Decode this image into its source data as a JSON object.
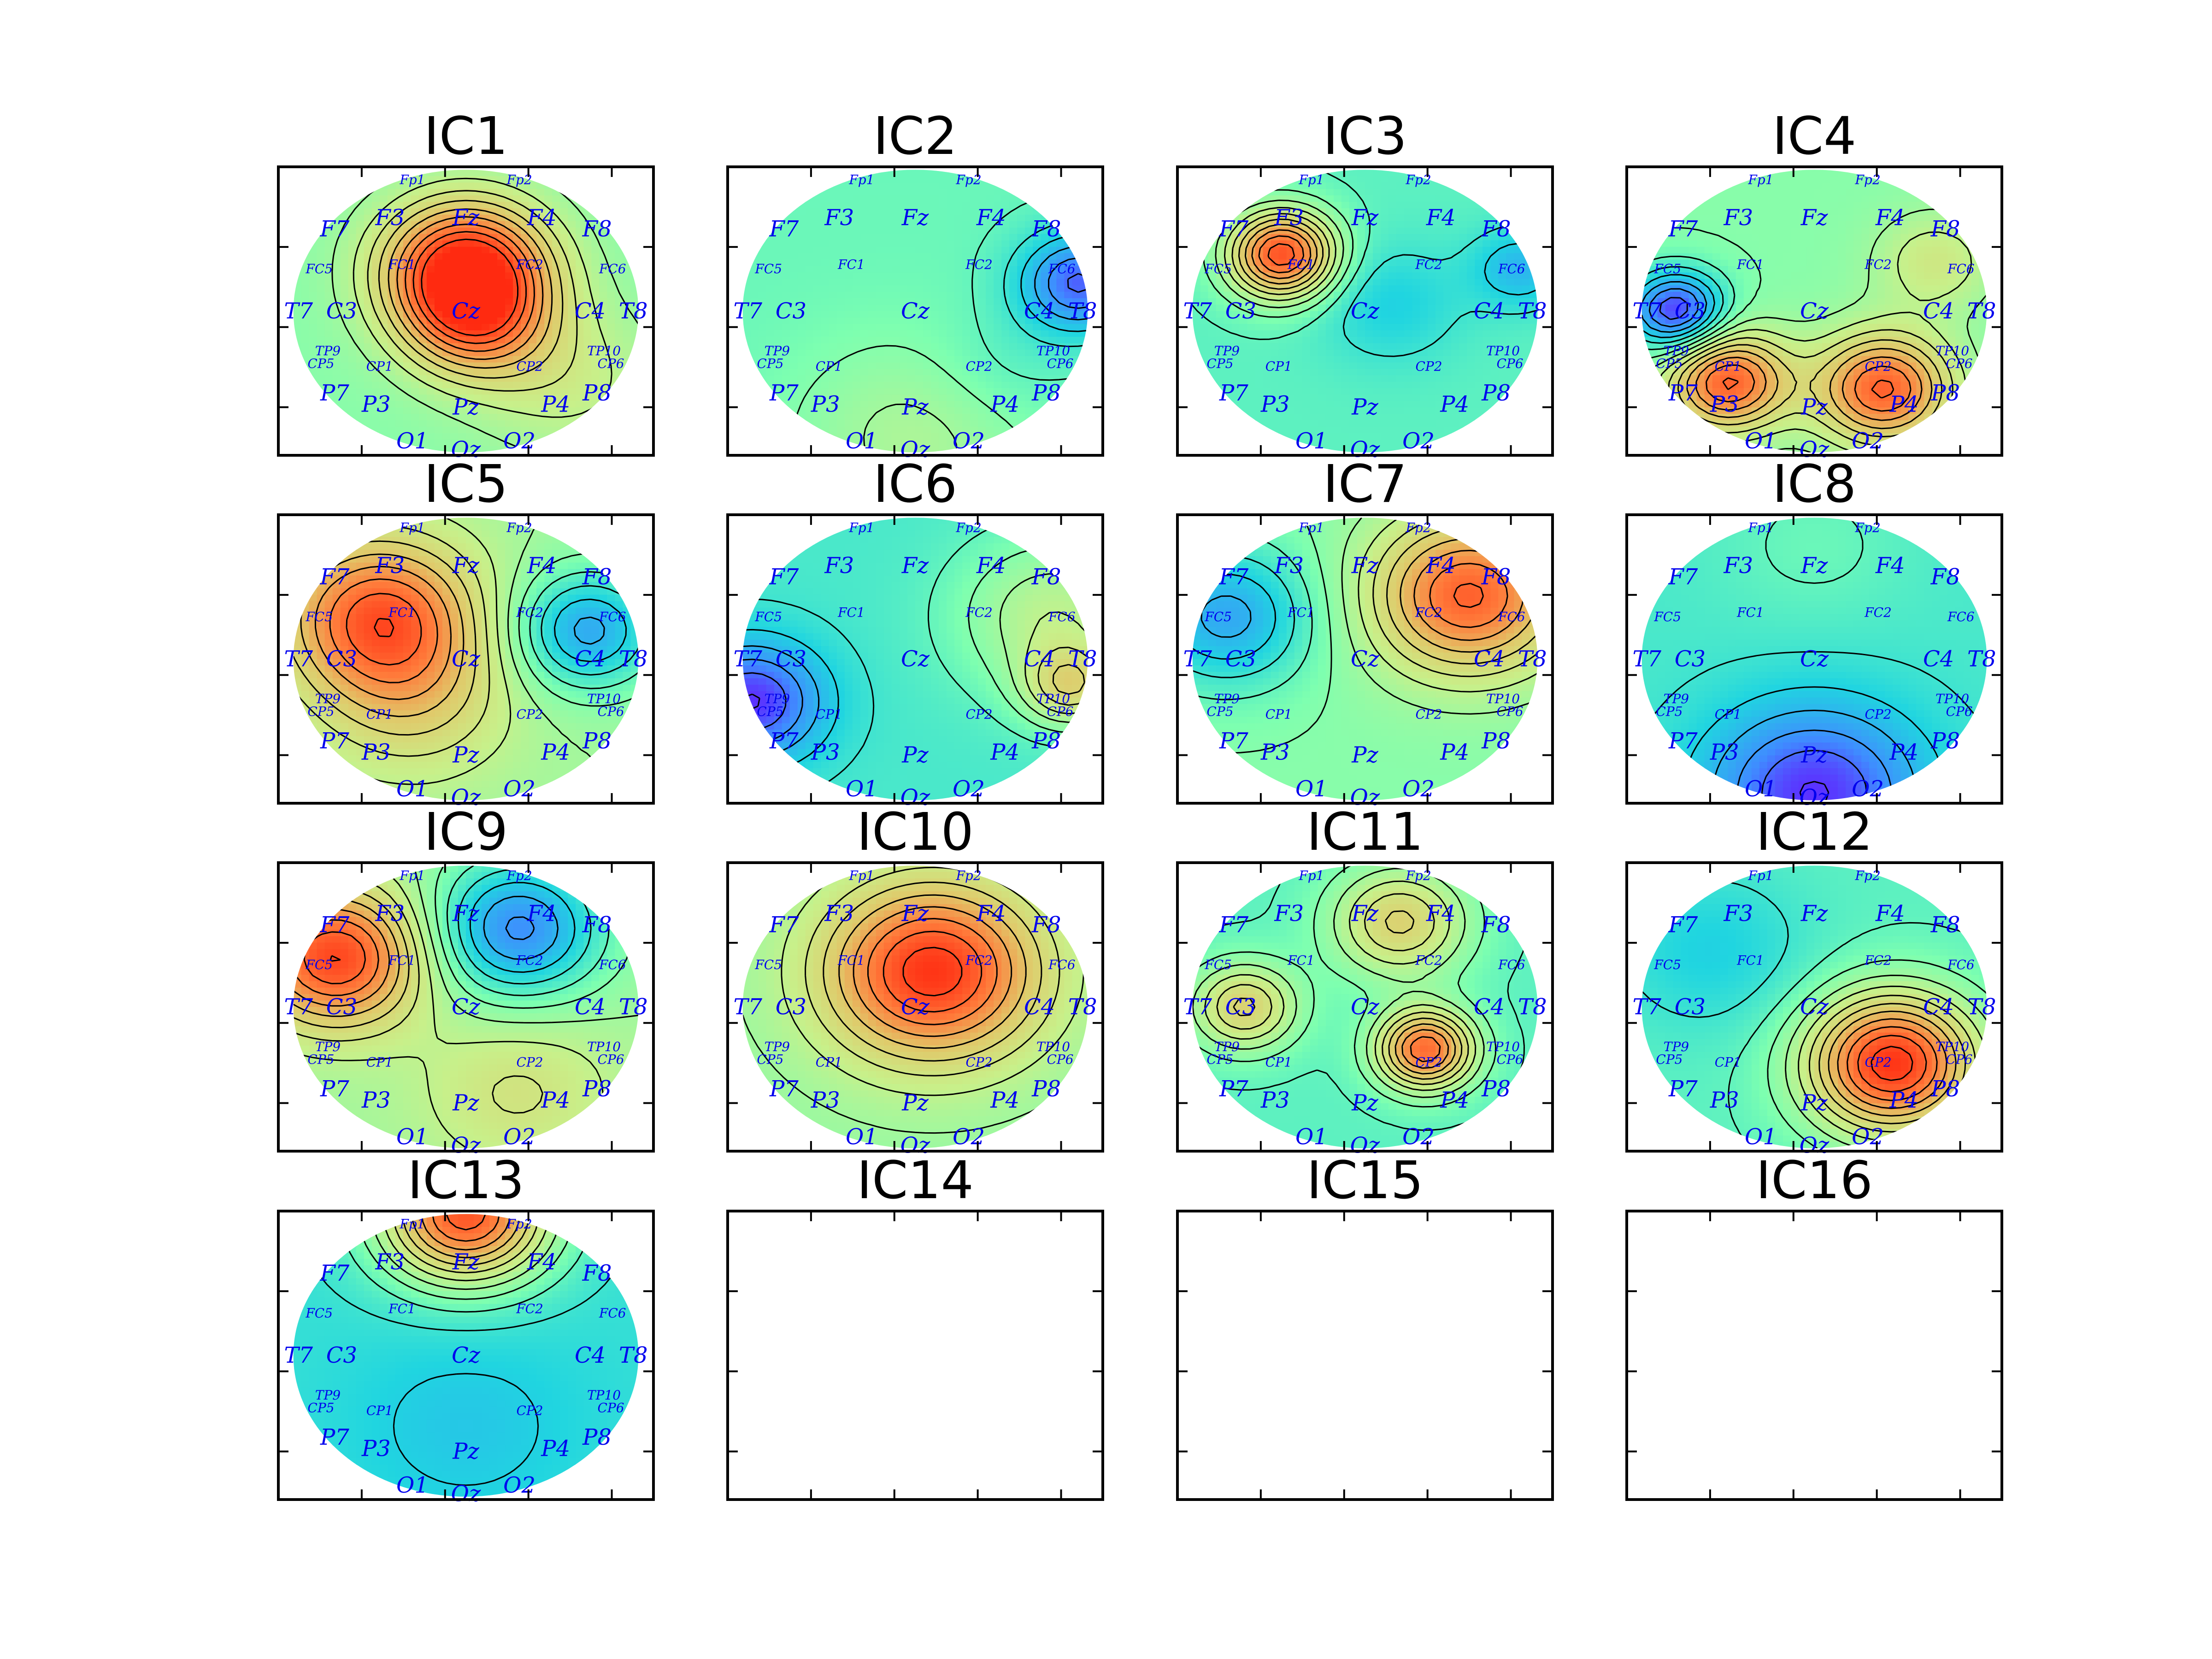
{
  "figure": {
    "domain": "Chart",
    "layout": "4x4 grid of scalp topography subplots"
  },
  "chart_data": {
    "type": "heatmap",
    "colormap": [
      "#6a00ff",
      "#3f8cff",
      "#20d5e0",
      "#7dffb0",
      "#c8f08a",
      "#e0c96a",
      "#ff7a3a",
      "#ff2a10"
    ],
    "electrodes": [
      {
        "name": "Fp1",
        "x": -0.31,
        "y": 0.95,
        "small": true
      },
      {
        "name": "Fp2",
        "x": 0.31,
        "y": 0.95,
        "small": true
      },
      {
        "name": "F7",
        "x": -0.76,
        "y": 0.58,
        "small": false
      },
      {
        "name": "F3",
        "x": -0.44,
        "y": 0.66,
        "small": false
      },
      {
        "name": "Fz",
        "x": 0.0,
        "y": 0.66,
        "small": false
      },
      {
        "name": "F4",
        "x": 0.44,
        "y": 0.66,
        "small": false
      },
      {
        "name": "F8",
        "x": 0.76,
        "y": 0.58,
        "small": false
      },
      {
        "name": "FC5",
        "x": -0.85,
        "y": 0.32,
        "small": true
      },
      {
        "name": "FC1",
        "x": -0.37,
        "y": 0.35,
        "small": true
      },
      {
        "name": "FC2",
        "x": 0.37,
        "y": 0.35,
        "small": true
      },
      {
        "name": "FC6",
        "x": 0.85,
        "y": 0.32,
        "small": true
      },
      {
        "name": "T7",
        "x": -0.97,
        "y": 0.0,
        "small": false
      },
      {
        "name": "C3",
        "x": -0.72,
        "y": 0.0,
        "small": false
      },
      {
        "name": "Cz",
        "x": 0.0,
        "y": 0.0,
        "small": false
      },
      {
        "name": "C4",
        "x": 0.72,
        "y": 0.0,
        "small": false
      },
      {
        "name": "T8",
        "x": 0.97,
        "y": 0.0,
        "small": false
      },
      {
        "name": "TP9",
        "x": -0.8,
        "y": -0.26,
        "small": true
      },
      {
        "name": "CP5",
        "x": -0.84,
        "y": -0.35,
        "small": true
      },
      {
        "name": "CP1",
        "x": -0.5,
        "y": -0.37,
        "small": true
      },
      {
        "name": "CP2",
        "x": 0.37,
        "y": -0.37,
        "small": true
      },
      {
        "name": "TP10",
        "x": 0.8,
        "y": -0.26,
        "small": true
      },
      {
        "name": "CP6",
        "x": 0.84,
        "y": -0.35,
        "small": true
      },
      {
        "name": "P7",
        "x": -0.76,
        "y": -0.58,
        "small": false
      },
      {
        "name": "P3",
        "x": -0.52,
        "y": -0.66,
        "small": false
      },
      {
        "name": "Pz",
        "x": 0.0,
        "y": -0.68,
        "small": false
      },
      {
        "name": "P4",
        "x": 0.52,
        "y": -0.66,
        "small": false
      },
      {
        "name": "P8",
        "x": 0.76,
        "y": -0.58,
        "small": false
      },
      {
        "name": "O1",
        "x": -0.31,
        "y": -0.92,
        "small": false
      },
      {
        "name": "Oz",
        "x": 0.0,
        "y": -0.98,
        "small": false
      },
      {
        "name": "O2",
        "x": 0.31,
        "y": -0.92,
        "small": false
      }
    ],
    "panels": [
      {
        "title": "IC1",
        "base": 0.45,
        "sources": [
          {
            "x": 0.0,
            "y": 0.3,
            "a": 0.55,
            "s": 0.35
          },
          {
            "x": 0.05,
            "y": -0.1,
            "a": 0.25,
            "s": 0.3
          },
          {
            "x": 0.6,
            "y": -0.5,
            "a": 0.12,
            "s": 0.4
          }
        ]
      },
      {
        "title": "IC2",
        "base": 0.4,
        "sources": [
          {
            "x": 0.95,
            "y": 0.2,
            "a": -0.3,
            "s": 0.25
          },
          {
            "x": 0.0,
            "y": -0.9,
            "a": 0.12,
            "s": 0.5
          },
          {
            "x": 0.5,
            "y": -0.4,
            "a": -0.05,
            "s": 0.3
          }
        ]
      },
      {
        "title": "IC3",
        "base": 0.38,
        "sources": [
          {
            "x": -0.48,
            "y": 0.4,
            "a": 0.55,
            "s": 0.22
          },
          {
            "x": 0.15,
            "y": 0.05,
            "a": -0.1,
            "s": 0.3
          },
          {
            "x": 0.9,
            "y": 0.3,
            "a": -0.15,
            "s": 0.2
          }
        ]
      },
      {
        "title": "IC4",
        "base": 0.45,
        "sources": [
          {
            "x": -0.5,
            "y": -0.5,
            "a": 0.45,
            "s": 0.25
          },
          {
            "x": 0.4,
            "y": -0.55,
            "a": 0.45,
            "s": 0.28
          },
          {
            "x": -0.8,
            "y": 0.0,
            "a": -0.4,
            "s": 0.2
          },
          {
            "x": 0.7,
            "y": 0.35,
            "a": 0.15,
            "s": 0.25
          }
        ]
      },
      {
        "title": "IC5",
        "base": 0.5,
        "sources": [
          {
            "x": -0.5,
            "y": 0.3,
            "a": 0.4,
            "s": 0.4
          },
          {
            "x": 0.7,
            "y": 0.2,
            "a": -0.3,
            "s": 0.3
          },
          {
            "x": -0.3,
            "y": -0.3,
            "a": 0.15,
            "s": 0.4
          }
        ]
      },
      {
        "title": "IC6",
        "base": 0.35,
        "sources": [
          {
            "x": -0.95,
            "y": -0.3,
            "a": -0.3,
            "s": 0.3
          },
          {
            "x": 0.8,
            "y": 0.3,
            "a": 0.2,
            "s": 0.4
          },
          {
            "x": 0.9,
            "y": -0.2,
            "a": 0.25,
            "s": 0.2
          }
        ]
      },
      {
        "title": "IC7",
        "base": 0.45,
        "sources": [
          {
            "x": 0.6,
            "y": 0.45,
            "a": 0.45,
            "s": 0.4
          },
          {
            "x": -0.8,
            "y": 0.3,
            "a": -0.25,
            "s": 0.35
          }
        ]
      },
      {
        "title": "IC8",
        "base": 0.35,
        "sources": [
          {
            "x": 0.0,
            "y": -0.95,
            "a": -0.3,
            "s": 0.45
          },
          {
            "x": 0.0,
            "y": 0.8,
            "a": 0.05,
            "s": 0.4
          }
        ]
      },
      {
        "title": "IC9",
        "base": 0.5,
        "sources": [
          {
            "x": -0.75,
            "y": 0.35,
            "a": 0.45,
            "s": 0.35
          },
          {
            "x": 0.3,
            "y": 0.55,
            "a": -0.35,
            "s": 0.35
          },
          {
            "x": 0.3,
            "y": -0.6,
            "a": 0.12,
            "s": 0.4
          }
        ]
      },
      {
        "title": "IC10",
        "base": 0.48,
        "sources": [
          {
            "x": 0.1,
            "y": 0.25,
            "a": 0.5,
            "s": 0.45
          }
        ]
      },
      {
        "title": "IC11",
        "base": 0.38,
        "sources": [
          {
            "x": 0.35,
            "y": -0.3,
            "a": 0.5,
            "s": 0.2
          },
          {
            "x": -0.7,
            "y": 0.0,
            "a": 0.3,
            "s": 0.22
          },
          {
            "x": 0.2,
            "y": 0.6,
            "a": 0.3,
            "s": 0.28
          }
        ]
      },
      {
        "title": "IC12",
        "base": 0.38,
        "sources": [
          {
            "x": 0.45,
            "y": -0.4,
            "a": 0.6,
            "s": 0.35
          },
          {
            "x": -0.6,
            "y": 0.4,
            "a": -0.1,
            "s": 0.4
          }
        ]
      },
      {
        "title": "IC13",
        "base": 0.32,
        "sources": [
          {
            "x": 0.0,
            "y": 1.0,
            "a": 0.6,
            "s": 0.35
          },
          {
            "x": 0.0,
            "y": -0.5,
            "a": -0.06,
            "s": 0.5
          }
        ]
      },
      {
        "title": "IC14",
        "empty": true
      },
      {
        "title": "IC15",
        "empty": true
      },
      {
        "title": "IC16",
        "empty": true
      }
    ]
  }
}
